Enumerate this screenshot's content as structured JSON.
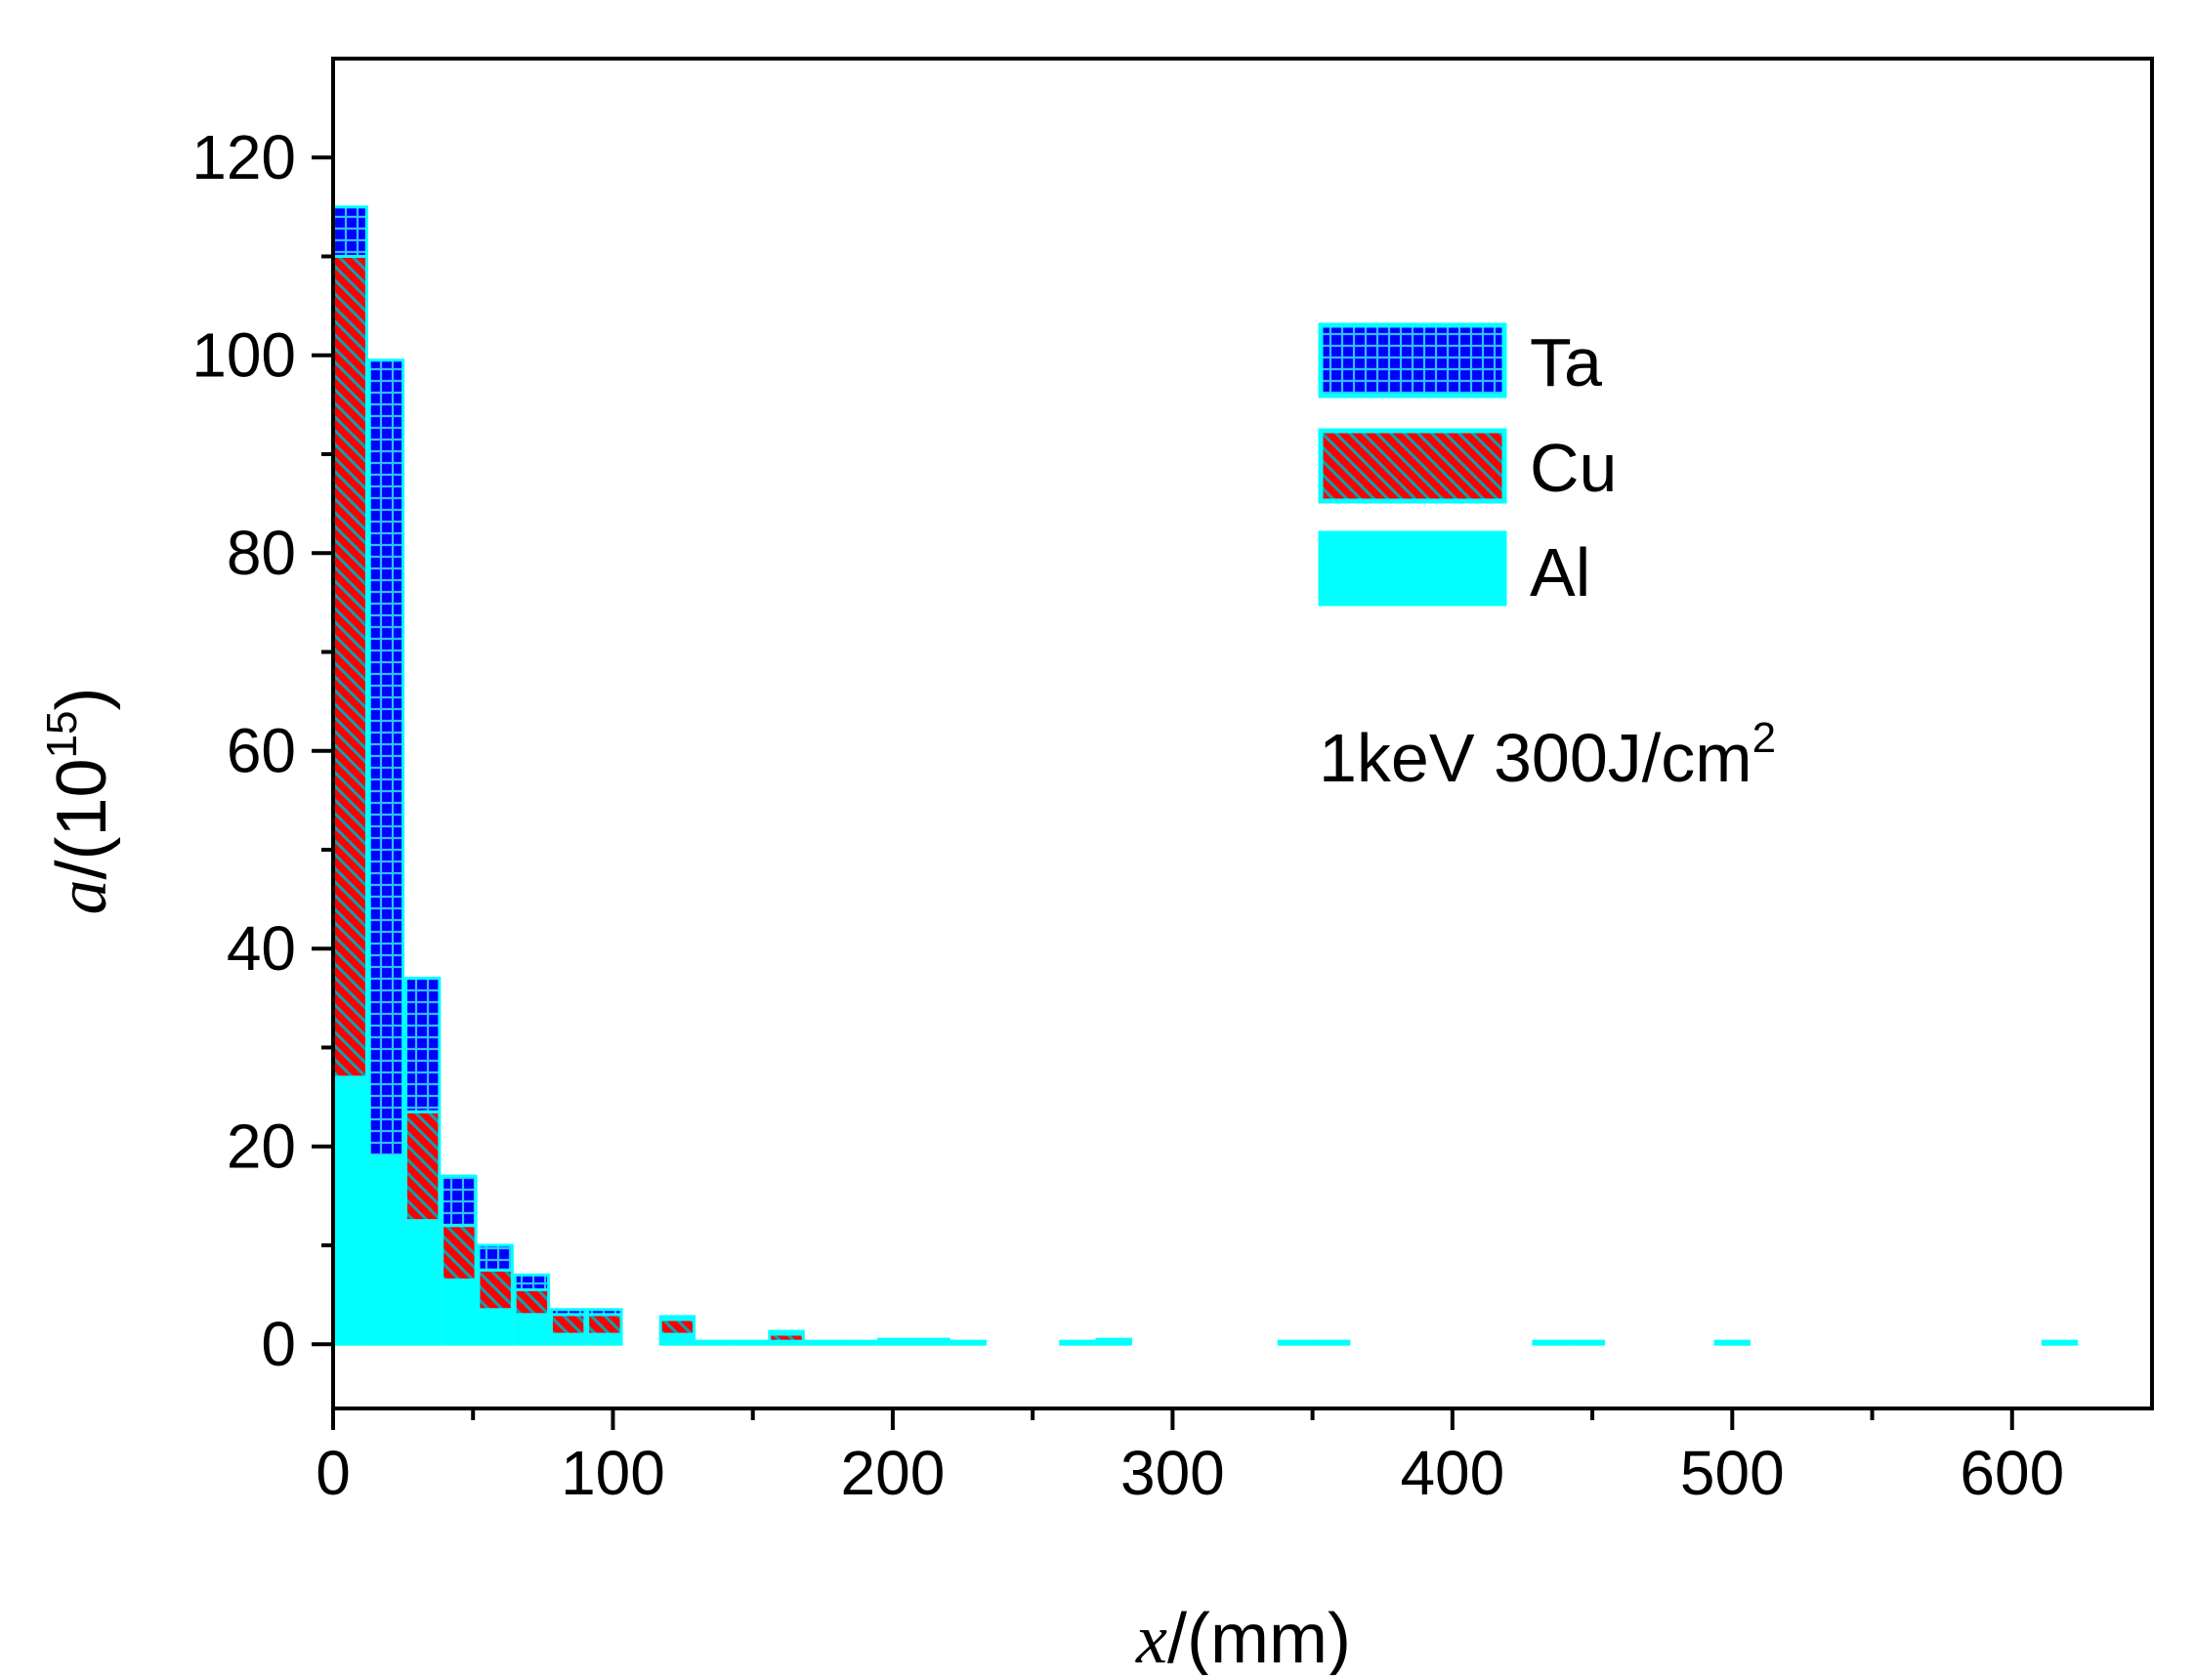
{
  "chart_data": {
    "type": "bar",
    "stacked": true,
    "xlabel_var": "x",
    "xlabel_unit": "/(mm)",
    "ylabel_var": "a",
    "ylabel_unit_prefix": "/(10",
    "ylabel_unit_exp": "15",
    "ylabel_unit_suffix": ")",
    "xlim": [
      0,
      650
    ],
    "ylim": [
      -6.5,
      130
    ],
    "xticks": [
      0,
      100,
      200,
      300,
      400,
      500,
      600
    ],
    "xtick_labels": [
      "0",
      "100",
      "200",
      "300",
      "400",
      "500",
      "600"
    ],
    "yticks": [
      0,
      20,
      40,
      60,
      80,
      100,
      120
    ],
    "ytick_labels": [
      "0",
      "20",
      "40",
      "60",
      "80",
      "100",
      "120"
    ],
    "grid": false,
    "legend_position": "top-right",
    "annotation_main": "1keV 300J/cm",
    "annotation_sup": "2",
    "bin_width": 12,
    "series": [
      {
        "name": "Al",
        "color": "#00ffff",
        "pattern": "solid",
        "x": [
          6,
          19,
          32,
          45,
          58,
          71,
          84,
          97,
          123,
          136,
          149,
          162,
          175,
          188,
          201,
          214,
          227,
          266,
          279,
          344,
          357,
          435,
          448,
          500,
          617
        ],
        "values": [
          27,
          19,
          12.5,
          6.5,
          3.5,
          3,
          1,
          1,
          1,
          0.3,
          0.3,
          0.3,
          0.3,
          0.3,
          0.3,
          0.3,
          0.3,
          0.3,
          0.3,
          0.3,
          0.3,
          0.3,
          0.3,
          0.3,
          0.3
        ]
      },
      {
        "name": "Cu",
        "color": "#ff0000",
        "pattern": "diagonal-hatch",
        "x": [
          6,
          19,
          32,
          45,
          58,
          71,
          84,
          97,
          123,
          136,
          149,
          162,
          175,
          188,
          201,
          214,
          227,
          266,
          279,
          344,
          357,
          435,
          448,
          500,
          617
        ],
        "values": [
          83,
          0,
          11,
          5.5,
          4,
          2.5,
          2,
          2,
          1.5,
          0,
          0,
          0.8,
          0,
          0,
          0,
          0,
          0,
          0,
          0,
          0,
          0,
          0,
          0,
          0,
          0
        ]
      },
      {
        "name": "Ta",
        "color": "#0000ff",
        "pattern": "grid",
        "x": [
          6,
          19,
          32,
          45,
          58,
          71,
          84,
          97,
          123,
          136,
          149,
          162,
          175,
          188,
          201,
          214,
          227,
          266,
          279,
          344,
          357,
          435,
          448,
          500,
          617
        ],
        "values": [
          5,
          80.5,
          13.5,
          5,
          2.5,
          1.5,
          0.5,
          0.5,
          0.3,
          0,
          0,
          0.2,
          0,
          0,
          0.2,
          0.2,
          0,
          0,
          0.2,
          0,
          0,
          0,
          0,
          0,
          0
        ]
      }
    ]
  }
}
